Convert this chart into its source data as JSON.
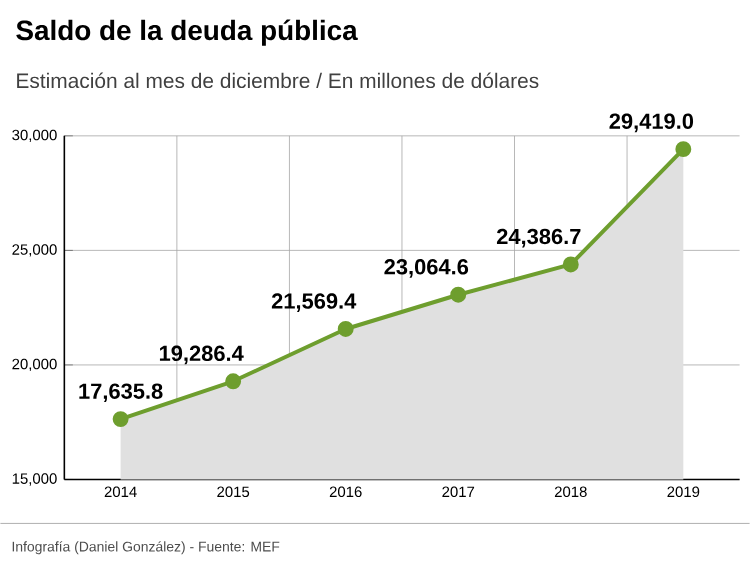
{
  "chart_data": {
    "type": "area",
    "title": "Saldo de la deuda pública",
    "subtitle": "Estimación al mes de diciembre / En millones de dólares",
    "categories": [
      "2014",
      "2015",
      "2016",
      "2017",
      "2018",
      "2019"
    ],
    "values": [
      17635.8,
      19286.4,
      21569.4,
      23064.6,
      24386.7,
      29419.0
    ],
    "value_labels": [
      "17,635.8",
      "19,286.4",
      "21,569.4",
      "23,064.6",
      "24,386.7",
      "29,419.0"
    ],
    "color": "#6e9e2e",
    "marker": "circle",
    "grid": true,
    "ylim": [
      15000,
      30000
    ],
    "yticks": [
      {
        "value": 15000,
        "label": "15,000"
      },
      {
        "value": 20000,
        "label": "20,000"
      },
      {
        "value": 25000,
        "label": "25,000"
      },
      {
        "value": 30000,
        "label": "30,000"
      }
    ],
    "annotations": [
      "Infografía (Daniel González) - Fuente: MEF"
    ]
  }
}
